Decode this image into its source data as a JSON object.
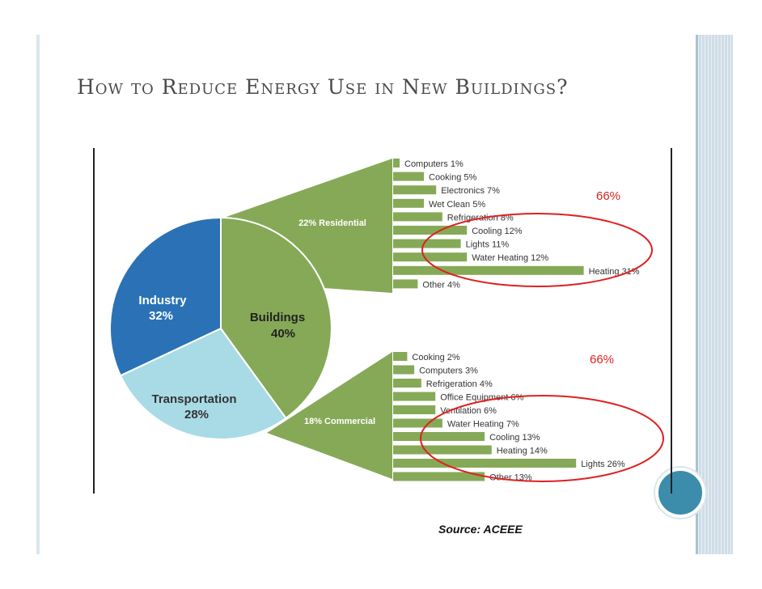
{
  "slide": {
    "title": "How to Reduce Energy Use in New Buildings?",
    "source": "Source: ACEEE"
  },
  "colors": {
    "industry": "#2a72b5",
    "transportation": "#a9dbe6",
    "buildings": "#86a957",
    "bar": "#86a957",
    "highlight": "#e02020",
    "title": "#4a4a4a"
  },
  "chart_data": [
    {
      "type": "pie",
      "slices": [
        {
          "name": "Industry",
          "value": 32,
          "label": "32%"
        },
        {
          "name": "Transportation",
          "value": 28,
          "label": "28%"
        },
        {
          "name": "Buildings",
          "value": 40,
          "label": "40%"
        }
      ]
    },
    {
      "type": "bar",
      "orientation": "horizontal",
      "segment": "22% Residential",
      "categories": [
        "Computers 1%",
        "Cooking 5%",
        "Electronics 7%",
        "Wet Clean 5%",
        "Refrigeration 8%",
        "Cooling 12%",
        "Lights 11%",
        "Water Heating 12%",
        "Heating 31%",
        "Other 4%"
      ],
      "values": [
        1,
        5,
        7,
        5,
        8,
        12,
        11,
        12,
        31,
        4
      ],
      "annotation": "66%"
    },
    {
      "type": "bar",
      "orientation": "horizontal",
      "segment": "18% Commercial",
      "categories": [
        "Cooking 2%",
        "Computers 3%",
        "Refrigeration 4%",
        "Office Equipment 6%",
        "Ventilation 6%",
        "Water Heating 7%",
        "Cooling 13%",
        "Heating 14%",
        "Lights 26%",
        "Other 13%"
      ],
      "values": [
        2,
        3,
        4,
        6,
        6,
        7,
        13,
        14,
        26,
        13
      ],
      "annotation": "66%"
    }
  ]
}
